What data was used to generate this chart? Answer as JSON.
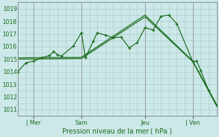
{
  "background_color": "#cce8e8",
  "grid_color": "#aacccc",
  "line_color": "#1a6b1a",
  "xlabel": "Pression niveau de la mer ( hPa )",
  "ylim": [
    1010.5,
    1019.5
  ],
  "yticks": [
    1011,
    1012,
    1013,
    1014,
    1015,
    1016,
    1017,
    1018,
    1019
  ],
  "xtick_labels": [
    "| Mer",
    "Sam",
    "Jeu",
    "| Ven"
  ],
  "xtick_positions": [
    2,
    8,
    16,
    22
  ],
  "xlim": [
    0,
    25
  ],
  "num_vgrid": 25,
  "line1_x": [
    0,
    1,
    2,
    3,
    4,
    4.5,
    5,
    5.5,
    7,
    8,
    8.5,
    9.5,
    10,
    11,
    12,
    13,
    14,
    15,
    16,
    17,
    18,
    19,
    20,
    22,
    22.5,
    23,
    24,
    25
  ],
  "line1_y": [
    1014.0,
    1014.7,
    1014.85,
    1015.1,
    1015.3,
    1015.6,
    1015.35,
    1015.25,
    1016.05,
    1017.1,
    1015.1,
    1016.45,
    1017.1,
    1016.9,
    1016.7,
    1016.75,
    1015.9,
    1016.3,
    1017.5,
    1017.3,
    1018.4,
    1018.5,
    1017.8,
    1014.8,
    1014.85,
    1014.1,
    1012.5,
    1011.3
  ],
  "line2_x": [
    0,
    8,
    16,
    22,
    25
  ],
  "line2_y": [
    1015.0,
    1015.05,
    1018.35,
    1014.8,
    1011.3
  ],
  "line3_x": [
    0,
    8,
    16,
    22,
    25
  ],
  "line3_y": [
    1015.1,
    1015.15,
    1018.5,
    1014.85,
    1011.4
  ],
  "spine_color": "#888888"
}
